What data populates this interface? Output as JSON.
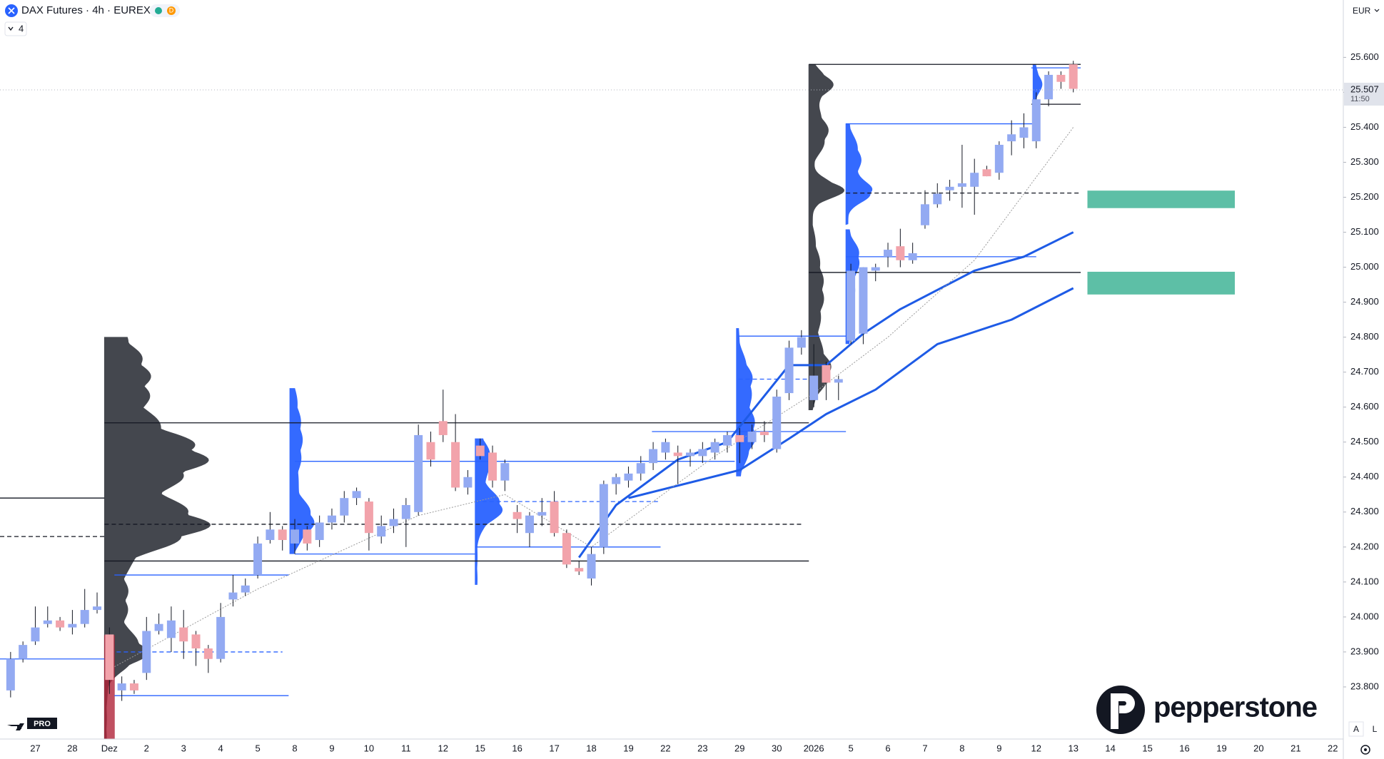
{
  "header": {
    "symbol": "DAX Futures · 4h · EUREX",
    "indicator_count": "4",
    "currency": "EUR",
    "btn_auto": "A",
    "btn_log": "L"
  },
  "brand": "pepperstone",
  "tv_badge": "PRO",
  "chart_data": {
    "type": "candlestick",
    "ylim": [
      23651,
      25764
    ],
    "yticks": [
      {
        "value": 23800,
        "label": "23.800"
      },
      {
        "value": 23900,
        "label": "23.900"
      },
      {
        "value": 24000,
        "label": "24.000"
      },
      {
        "value": 24100,
        "label": "24.100"
      },
      {
        "value": 24200,
        "label": "24.200"
      },
      {
        "value": 24300,
        "label": "24.300"
      },
      {
        "value": 24400,
        "label": "24.400"
      },
      {
        "value": 24500,
        "label": "24.500"
      },
      {
        "value": 24600,
        "label": "24.600"
      },
      {
        "value": 24700,
        "label": "24.700"
      },
      {
        "value": 24800,
        "label": "24.800"
      },
      {
        "value": 24900,
        "label": "24.900"
      },
      {
        "value": 25000,
        "label": "25.000"
      },
      {
        "value": 25100,
        "label": "25.100"
      },
      {
        "value": 25200,
        "label": "25.200"
      },
      {
        "value": 25300,
        "label": "25.300"
      },
      {
        "value": 25400,
        "label": "25.400"
      },
      {
        "value": 25500,
        "label": "25.500"
      },
      {
        "value": 25600,
        "label": "25.600"
      }
    ],
    "categories": [
      "27",
      "28",
      "Dez",
      "2",
      "3",
      "4",
      "5",
      "8",
      "9",
      "10",
      "11",
      "12",
      "15",
      "16",
      "17",
      "18",
      "19",
      "22",
      "23",
      "29",
      "30",
      "2026",
      "5",
      "6",
      "7",
      "8",
      "9",
      "12",
      "13",
      "14",
      "15",
      "16",
      "19",
      "20",
      "21",
      "22"
    ],
    "up_color": "#93aaf2",
    "down_color": "#f2a3ab",
    "candles": [
      [
        23790,
        23900,
        23770,
        23880
      ],
      [
        23880,
        23930,
        23870,
        23920
      ],
      [
        23930,
        24030,
        23920,
        23970
      ],
      [
        23980,
        24030,
        23970,
        23990
      ],
      [
        23990,
        24000,
        23960,
        23970
      ],
      [
        23970,
        24020,
        23950,
        23980
      ],
      [
        23980,
        24080,
        23970,
        24020
      ],
      [
        24020,
        24070,
        24010,
        24030
      ],
      [
        23950,
        23970,
        23780,
        23820
      ],
      [
        23790,
        23830,
        23760,
        23810
      ],
      [
        23810,
        23820,
        23780,
        23790
      ],
      [
        23840,
        24000,
        23820,
        23960
      ],
      [
        23960,
        24010,
        23950,
        23980
      ],
      [
        23940,
        24030,
        23900,
        23990
      ],
      [
        23970,
        24020,
        23880,
        23930
      ],
      [
        23950,
        23960,
        23860,
        23910
      ],
      [
        23910,
        23920,
        23840,
        23880
      ],
      [
        23880,
        24040,
        23870,
        24000
      ],
      [
        24050,
        24120,
        24030,
        24070
      ],
      [
        24070,
        24110,
        24060,
        24090
      ],
      [
        24120,
        24230,
        24110,
        24210
      ],
      [
        24220,
        24300,
        24210,
        24250
      ],
      [
        24250,
        24260,
        24190,
        24220
      ],
      [
        24210,
        24280,
        24180,
        24250
      ],
      [
        24250,
        24260,
        24190,
        24210
      ],
      [
        24220,
        24290,
        24200,
        24270
      ],
      [
        24270,
        24310,
        24250,
        24290
      ],
      [
        24290,
        24360,
        24270,
        24340
      ],
      [
        24340,
        24370,
        24320,
        24360
      ],
      [
        24330,
        24340,
        24190,
        24240
      ],
      [
        24230,
        24290,
        24210,
        24260
      ],
      [
        24260,
        24310,
        24240,
        24280
      ],
      [
        24280,
        24340,
        24200,
        24320
      ],
      [
        24300,
        24550,
        24290,
        24520
      ],
      [
        24500,
        24530,
        24430,
        24450
      ],
      [
        24560,
        24650,
        24500,
        24520
      ],
      [
        24500,
        24580,
        24360,
        24370
      ],
      [
        24370,
        24420,
        24350,
        24400
      ],
      [
        24490,
        24510,
        24450,
        24460
      ],
      [
        24470,
        24490,
        24370,
        24390
      ],
      [
        24390,
        24450,
        24360,
        24440
      ],
      [
        24300,
        24320,
        24240,
        24280
      ],
      [
        24240,
        24300,
        24200,
        24290
      ],
      [
        24290,
        24340,
        24260,
        24300
      ],
      [
        24330,
        24360,
        24230,
        24240
      ],
      [
        24240,
        24250,
        24140,
        24150
      ],
      [
        24140,
        24160,
        24120,
        24130
      ],
      [
        24110,
        24200,
        24090,
        24180
      ],
      [
        24200,
        24390,
        24180,
        24380
      ],
      [
        24380,
        24410,
        24350,
        24400
      ],
      [
        24390,
        24430,
        24370,
        24410
      ],
      [
        24410,
        24460,
        24390,
        24440
      ],
      [
        24440,
        24500,
        24420,
        24480
      ],
      [
        24470,
        24510,
        24450,
        24500
      ],
      [
        24470,
        24490,
        24380,
        24460
      ],
      [
        24460,
        24480,
        24430,
        24470
      ],
      [
        24460,
        24500,
        24440,
        24480
      ],
      [
        24470,
        24510,
        24450,
        24500
      ],
      [
        24490,
        24530,
        24470,
        24520
      ],
      [
        24520,
        24540,
        24440,
        24500
      ],
      [
        24500,
        24550,
        24480,
        24530
      ],
      [
        24530,
        24560,
        24500,
        24520
      ],
      [
        24480,
        24650,
        24470,
        24630
      ],
      [
        24640,
        24790,
        24620,
        24770
      ],
      [
        24770,
        24820,
        24750,
        24800
      ],
      [
        24620,
        24780,
        24600,
        24690
      ],
      [
        24720,
        24730,
        24620,
        24670
      ],
      [
        24670,
        24690,
        24620,
        24680
      ],
      [
        24790,
        25010,
        24780,
        24990
      ],
      [
        24810,
        25000,
        24780,
        25000
      ],
      [
        24990,
        25010,
        24960,
        25000
      ],
      [
        25030,
        25070,
        25000,
        25050
      ],
      [
        25060,
        25110,
        25000,
        25020
      ],
      [
        25020,
        25070,
        25010,
        25040
      ],
      [
        25120,
        25220,
        25110,
        25180
      ],
      [
        25180,
        25240,
        25170,
        25210
      ],
      [
        25220,
        25250,
        25190,
        25230
      ],
      [
        25230,
        25350,
        25170,
        25240
      ],
      [
        25230,
        25310,
        25150,
        25270
      ],
      [
        25280,
        25290,
        25260,
        25260
      ],
      [
        25270,
        25360,
        25250,
        25350
      ],
      [
        25360,
        25420,
        25320,
        25380
      ],
      [
        25370,
        25440,
        25340,
        25400
      ],
      [
        25360,
        25500,
        25340,
        25480
      ],
      [
        25480,
        25560,
        25460,
        25550
      ],
      [
        25550,
        25560,
        25510,
        25530
      ],
      [
        25580,
        25590,
        25500,
        25510
      ]
    ],
    "series": [
      {
        "color": "#1e5be6",
        "width": 3,
        "x": [
          46,
          49,
          54,
          58,
          63,
          66,
          69,
          72,
          78,
          82,
          86
        ],
        "values": [
          24170,
          24320,
          24450,
          24500,
          24720,
          24720,
          24810,
          24880,
          24990,
          25030,
          25100
        ]
      },
      {
        "color": "#1e5be6",
        "width": 3,
        "x": [
          50,
          59,
          63,
          66,
          70,
          75,
          81,
          86
        ],
        "values": [
          24340,
          24420,
          24510,
          24580,
          24650,
          24780,
          24850,
          24940
        ]
      },
      {
        "color": "#9a9a9a",
        "width": 1,
        "x": [
          8,
          20,
          33,
          40,
          47,
          57,
          65,
          71,
          78,
          86
        ],
        "values": [
          23850,
          24080,
          24290,
          24350,
          24200,
          24460,
          24640,
          24800,
          25020,
          25400
        ]
      }
    ],
    "levels": [
      {
        "value": 24340,
        "start": -1,
        "end": 7.6,
        "color": "#131722",
        "dash": false
      },
      {
        "value": 24230,
        "start": -1,
        "end": 7.6,
        "color": "#131722",
        "dash": true
      },
      {
        "value": 23880,
        "start": -1,
        "end": 7.6,
        "color": "#2962ff",
        "dash": false
      },
      {
        "value": 24555,
        "start": 7.6,
        "end": 64.6,
        "color": "#131722",
        "dash": false
      },
      {
        "value": 24265,
        "start": 7.6,
        "end": 64,
        "color": "#131722",
        "dash": true
      },
      {
        "value": 24160,
        "start": 7.6,
        "end": 64.6,
        "color": "#131722",
        "dash": false
      },
      {
        "value": 23900,
        "start": 8,
        "end": 22,
        "color": "#2962ff",
        "dash": true
      },
      {
        "value": 23775,
        "start": 8.4,
        "end": 22.5,
        "color": "#2962ff",
        "dash": false
      },
      {
        "value": 24120,
        "start": 8.4,
        "end": 22.5,
        "color": "#2962ff",
        "dash": false
      },
      {
        "value": 24445,
        "start": 23,
        "end": 58.6,
        "color": "#2962ff",
        "dash": false
      },
      {
        "value": 24180,
        "start": 23,
        "end": 37.6,
        "color": "#2962ff",
        "dash": false
      },
      {
        "value": 24200,
        "start": 37.6,
        "end": 52.6,
        "color": "#2962ff",
        "dash": false
      },
      {
        "value": 24330,
        "start": 37.6,
        "end": 52.6,
        "color": "#2962ff",
        "dash": true
      },
      {
        "value": 24803,
        "start": 58.9,
        "end": 67.6,
        "color": "#2962ff",
        "dash": false
      },
      {
        "value": 24680,
        "start": 58.9,
        "end": 64.6,
        "color": "#2962ff",
        "dash": true
      },
      {
        "value": 24530,
        "start": 51.9,
        "end": 67.6,
        "color": "#2962ff",
        "dash": false
      },
      {
        "value": 25580,
        "start": 64.6,
        "end": 86.6,
        "color": "#131722",
        "dash": false
      },
      {
        "value": 24985,
        "start": 64.6,
        "end": 86.6,
        "color": "#131722",
        "dash": false
      },
      {
        "value": 25410,
        "start": 67.6,
        "end": 83,
        "color": "#2962ff",
        "dash": false
      },
      {
        "value": 25212,
        "start": 67.6,
        "end": 86.6,
        "color": "#131722",
        "dash": true
      },
      {
        "value": 25030,
        "start": 67.6,
        "end": 83,
        "color": "#2962ff",
        "dash": false
      },
      {
        "value": 25570,
        "start": 82.6,
        "end": 86.6,
        "color": "#2962ff",
        "dash": false
      },
      {
        "value": 25466,
        "start": 82.6,
        "end": 86.6,
        "color": "#131722",
        "dash": false
      }
    ],
    "zones": [
      {
        "high": 25219,
        "low": 25169,
        "color": "#5dbfa6"
      },
      {
        "high": 24987,
        "low": 24922,
        "color": "#5dbfa6"
      }
    ],
    "last_price": {
      "value": 25507,
      "label": "25.507",
      "countdown": "11:50"
    }
  }
}
